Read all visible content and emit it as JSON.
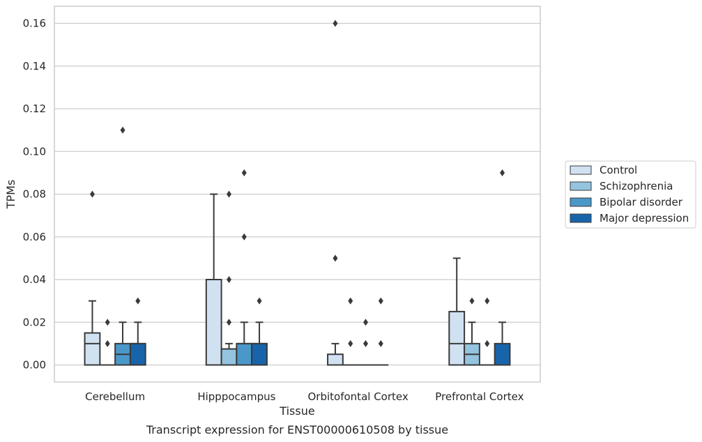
{
  "caption": "Transcript expression for ENST00000610508 by tissue",
  "colors": {
    "Control": "#d0e1f2",
    "Schizophrenia": "#94c4df",
    "Bipolar disorder": "#4a98c9",
    "Major depression": "#1764ab",
    "edge": "#3a3a3a",
    "grid": "#cccccc"
  },
  "chart_data": {
    "type": "box",
    "xlabel": "Tissue",
    "ylabel": "TPMs",
    "ylim": [
      -0.008,
      0.168
    ],
    "yticks": [
      0.0,
      0.02,
      0.04,
      0.06,
      0.08,
      0.1,
      0.12,
      0.14,
      0.16
    ],
    "ytick_labels": [
      "0.00",
      "0.02",
      "0.04",
      "0.06",
      "0.08",
      "0.10",
      "0.12",
      "0.14",
      "0.16"
    ],
    "grid": "horizontal",
    "legend_position": "right",
    "categories": [
      "Cerebellum",
      "Hipppocampus",
      "Orbitofontal Cortex",
      "Prefrontal Cortex"
    ],
    "series": [
      {
        "name": "Control",
        "boxes": [
          {
            "q1": 0.0,
            "median": 0.01,
            "q3": 0.015,
            "whisker_low": 0.0,
            "whisker_high": 0.03,
            "outliers": [
              0.08
            ]
          },
          {
            "q1": 0.0,
            "median": 0.0,
            "q3": 0.04,
            "whisker_low": 0.0,
            "whisker_high": 0.08,
            "outliers": []
          },
          {
            "q1": 0.0,
            "median": 0.0,
            "q3": 0.005,
            "whisker_low": 0.0,
            "whisker_high": 0.01,
            "outliers": [
              0.05,
              0.16
            ]
          },
          {
            "q1": 0.0,
            "median": 0.01,
            "q3": 0.025,
            "whisker_low": 0.0,
            "whisker_high": 0.05,
            "outliers": []
          }
        ]
      },
      {
        "name": "Schizophrenia",
        "boxes": [
          {
            "q1": 0.0,
            "median": 0.0,
            "q3": 0.0,
            "whisker_low": 0.0,
            "whisker_high": 0.0,
            "outliers": [
              0.01,
              0.02
            ]
          },
          {
            "q1": 0.0,
            "median": 0.0075,
            "q3": 0.0075,
            "whisker_low": 0.0,
            "whisker_high": 0.01,
            "outliers": [
              0.02,
              0.04,
              0.08
            ]
          },
          {
            "q1": 0.0,
            "median": 0.0,
            "q3": 0.0,
            "whisker_low": 0.0,
            "whisker_high": 0.0,
            "outliers": [
              0.01,
              0.03
            ]
          },
          {
            "q1": 0.0,
            "median": 0.005,
            "q3": 0.01,
            "whisker_low": 0.0,
            "whisker_high": 0.02,
            "outliers": [
              0.03
            ]
          }
        ]
      },
      {
        "name": "Bipolar disorder",
        "boxes": [
          {
            "q1": 0.0,
            "median": 0.005,
            "q3": 0.01,
            "whisker_low": 0.0,
            "whisker_high": 0.02,
            "outliers": [
              0.11
            ]
          },
          {
            "q1": 0.0,
            "median": 0.01,
            "q3": 0.01,
            "whisker_low": 0.0,
            "whisker_high": 0.02,
            "outliers": [
              0.06,
              0.09
            ]
          },
          {
            "q1": 0.0,
            "median": 0.0,
            "q3": 0.0,
            "whisker_low": 0.0,
            "whisker_high": 0.0,
            "outliers": [
              0.01,
              0.02
            ]
          },
          {
            "q1": 0.0,
            "median": 0.0,
            "q3": 0.0,
            "whisker_low": 0.0,
            "whisker_high": 0.0,
            "outliers": [
              0.01,
              0.03
            ]
          }
        ]
      },
      {
        "name": "Major depression",
        "boxes": [
          {
            "q1": 0.0,
            "median": 0.01,
            "q3": 0.01,
            "whisker_low": 0.0,
            "whisker_high": 0.02,
            "outliers": [
              0.03
            ]
          },
          {
            "q1": 0.0,
            "median": 0.01,
            "q3": 0.01,
            "whisker_low": 0.0,
            "whisker_high": 0.02,
            "outliers": [
              0.03
            ]
          },
          {
            "q1": 0.0,
            "median": 0.0,
            "q3": 0.0,
            "whisker_low": 0.0,
            "whisker_high": 0.0,
            "outliers": [
              0.01,
              0.03
            ]
          },
          {
            "q1": 0.0,
            "median": 0.0,
            "q3": 0.01,
            "whisker_low": 0.0,
            "whisker_high": 0.02,
            "outliers": [
              0.09
            ]
          }
        ]
      }
    ]
  }
}
